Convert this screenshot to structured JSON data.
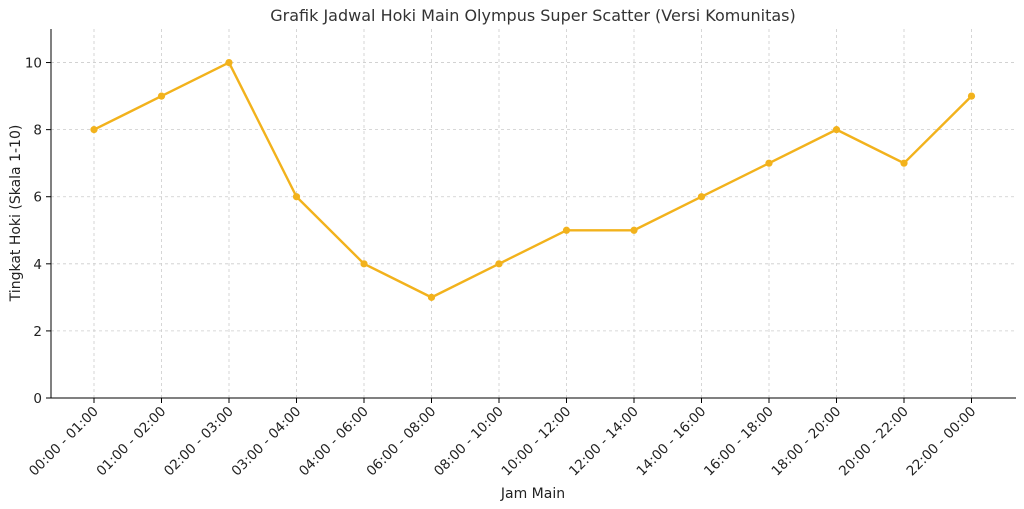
{
  "chart_data": {
    "type": "line",
    "title": "Grafik Jadwal Hoki Main Olympus Super Scatter (Versi Komunitas)",
    "xlabel": "Jam Main",
    "ylabel": "Tingkat Hoki (Skala 1-10)",
    "categories": [
      "00:00 - 01:00",
      "01:00 - 02:00",
      "02:00 - 03:00",
      "03:00 - 04:00",
      "04:00 - 06:00",
      "06:00 - 08:00",
      "08:00 - 10:00",
      "10:00 - 12:00",
      "12:00 - 14:00",
      "14:00 - 16:00",
      "16:00 - 18:00",
      "18:00 - 20:00",
      "20:00 - 22:00",
      "22:00 - 00:00"
    ],
    "series": [
      {
        "values": [
          8,
          9,
          10,
          6,
          4,
          3,
          4,
          5,
          5,
          6,
          7,
          8,
          7,
          9
        ],
        "color": "#F2B21C"
      }
    ],
    "ylim": [
      0,
      11
    ],
    "yticks": [
      0,
      2,
      4,
      6,
      8,
      10
    ],
    "grid": true,
    "marker": "circle"
  }
}
